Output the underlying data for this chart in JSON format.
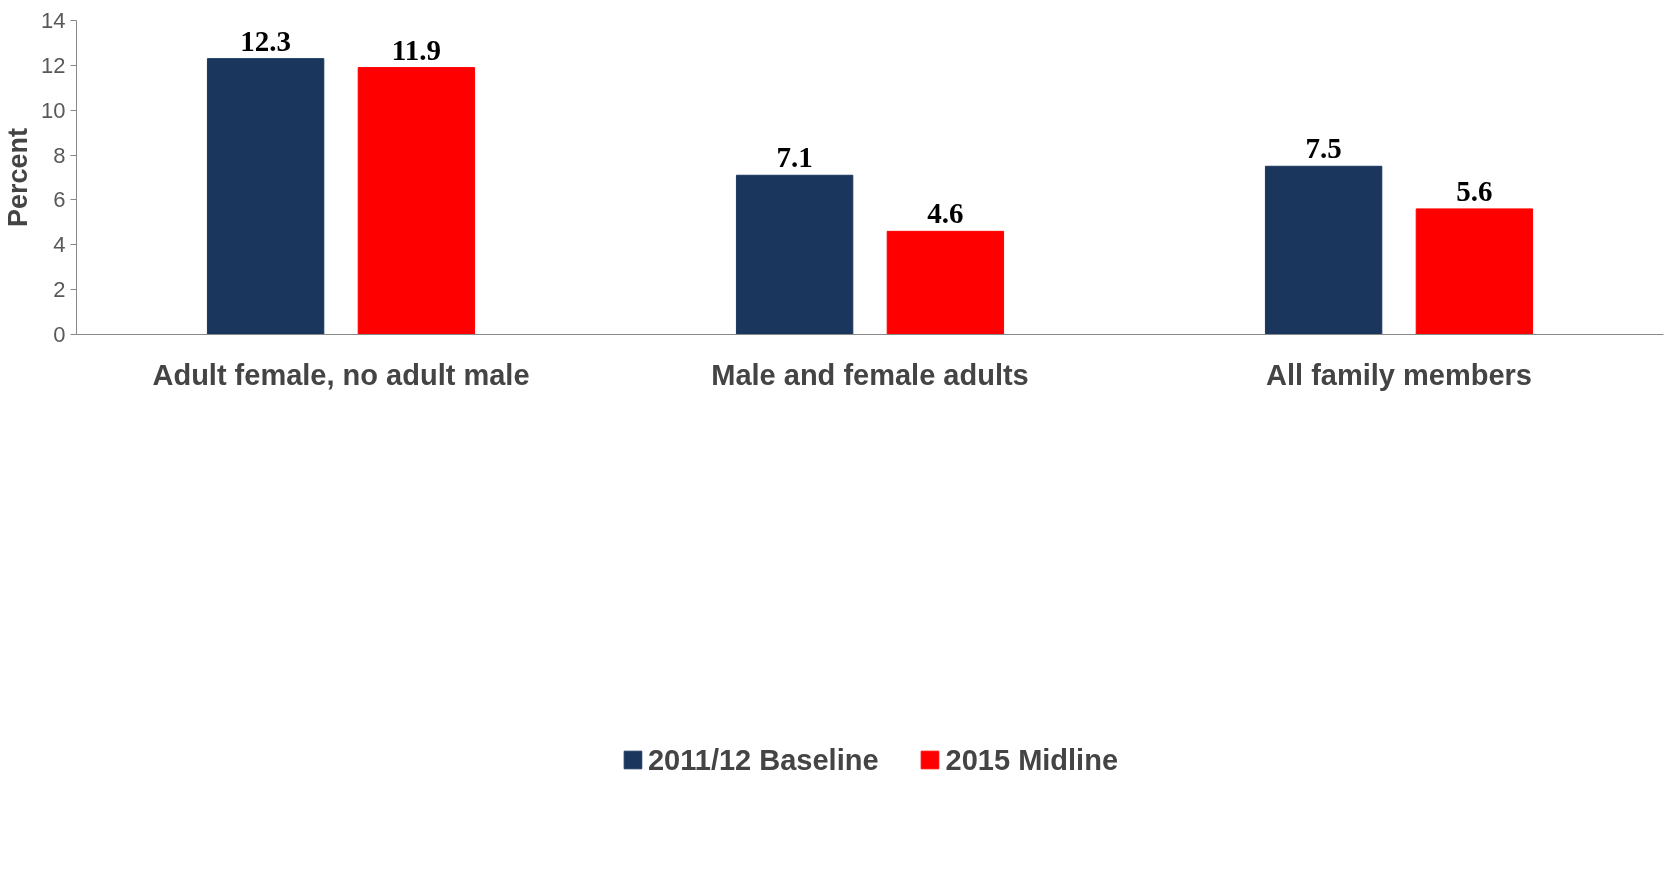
{
  "chart_data": {
    "type": "bar",
    "ylabel": "Percent",
    "categories": [
      "Adult female, no adult male",
      "Male and female adults",
      "All family members"
    ],
    "series": [
      {
        "name": "2011/12 Baseline",
        "color": "#1b365d",
        "values": [
          12.3,
          7.1,
          7.5
        ]
      },
      {
        "name": "2015 Midline",
        "color": "#ff0000",
        "values": [
          11.9,
          4.6,
          5.6
        ]
      }
    ],
    "ylim": [
      0,
      14
    ],
    "yticks": [
      0,
      2,
      4,
      6,
      8,
      10,
      12,
      14
    ],
    "grid": false,
    "legend": "bottom",
    "data_labels": true
  }
}
